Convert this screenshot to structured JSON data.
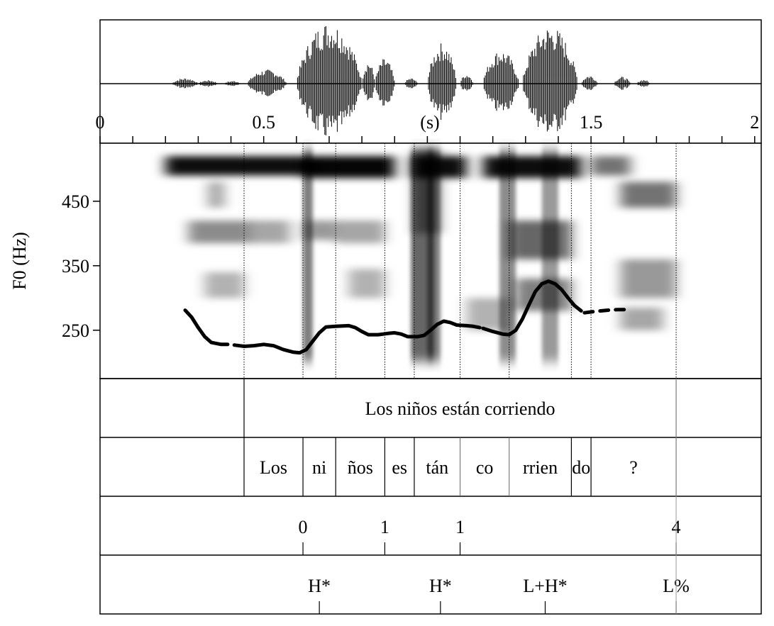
{
  "chart_data": {
    "type": "line",
    "time_axis": {
      "label": "(s)",
      "ticks": [
        {
          "value": 0,
          "label": "0"
        },
        {
          "value": 0.5,
          "label": "0.5"
        },
        {
          "value": 1.5,
          "label": "1.5"
        },
        {
          "value": 2,
          "label": "2"
        }
      ],
      "range": [
        0,
        2.02
      ]
    },
    "f0_axis": {
      "label": "F0 (Hz)",
      "ticks": [
        {
          "value": 250,
          "label": "250"
        },
        {
          "value": 350,
          "label": "350"
        },
        {
          "value": 450,
          "label": "450"
        }
      ],
      "range": [
        175,
        540
      ]
    },
    "f0_contour": {
      "segments": [
        {
          "style": "solid",
          "points": [
            [
              0.26,
              281
            ],
            [
              0.28,
              270
            ],
            [
              0.3,
              254
            ],
            [
              0.32,
              240
            ],
            [
              0.34,
              231
            ],
            [
              0.37,
              228
            ],
            [
              0.39,
              228
            ]
          ]
        },
        {
          "style": "solid",
          "points": [
            [
              0.41,
              227
            ],
            [
              0.44,
              225
            ],
            [
              0.47,
              226
            ],
            [
              0.5,
              228
            ],
            [
              0.53,
              226
            ],
            [
              0.56,
              220
            ],
            [
              0.59,
              216
            ],
            [
              0.61,
              215
            ],
            [
              0.63,
              220
            ],
            [
              0.65,
              233
            ],
            [
              0.67,
              246
            ],
            [
              0.69,
              255
            ],
            [
              0.72,
              256
            ],
            [
              0.76,
              257
            ],
            [
              0.78,
              254
            ],
            [
              0.8,
              248
            ],
            [
              0.82,
              243
            ],
            [
              0.85,
              243
            ],
            [
              0.88,
              245
            ],
            [
              0.9,
              246
            ],
            [
              0.92,
              244
            ],
            [
              0.94,
              240
            ],
            [
              0.97,
              240
            ],
            [
              0.99,
              242
            ],
            [
              1.01,
              250
            ],
            [
              1.03,
              259
            ],
            [
              1.05,
              264
            ],
            [
              1.07,
              262
            ],
            [
              1.09,
              258
            ],
            [
              1.12,
              257
            ],
            [
              1.14,
              256
            ],
            [
              1.16,
              254
            ]
          ]
        },
        {
          "style": "solid",
          "points": [
            [
              1.17,
              253
            ],
            [
              1.2,
              248
            ],
            [
              1.23,
              244
            ],
            [
              1.25,
              243
            ],
            [
              1.27,
              250
            ],
            [
              1.29,
              267
            ],
            [
              1.31,
              289
            ],
            [
              1.33,
              310
            ],
            [
              1.35,
              322
            ],
            [
              1.37,
              326
            ],
            [
              1.39,
              322
            ],
            [
              1.41,
              313
            ],
            [
              1.43,
              300
            ],
            [
              1.45,
              288
            ],
            [
              1.47,
              280
            ]
          ]
        },
        {
          "style": "dashed",
          "points": [
            [
              1.48,
              277
            ],
            [
              1.51,
              279
            ],
            [
              1.55,
              281
            ],
            [
              1.58,
              282
            ],
            [
              1.61,
              282
            ]
          ]
        }
      ]
    },
    "tiers": [
      {
        "name": "",
        "type": "interval",
        "boundaries": [
          0.44,
          1.76
        ],
        "labels": [
          {
            "text": "Los niños están corriendo",
            "start": 0.44,
            "end": 1.76
          }
        ]
      },
      {
        "name": "",
        "type": "interval",
        "boundaries": [
          0.44,
          0.62,
          0.72,
          0.87,
          0.96,
          1.1,
          1.25,
          1.44,
          1.5,
          1.76
        ],
        "labels": [
          {
            "text": "Los",
            "start": 0.44,
            "end": 0.62
          },
          {
            "text": "ni",
            "start": 0.62,
            "end": 0.72
          },
          {
            "text": "ños",
            "start": 0.72,
            "end": 0.87
          },
          {
            "text": "es",
            "start": 0.87,
            "end": 0.96
          },
          {
            "text": "tán",
            "start": 0.96,
            "end": 1.1
          },
          {
            "text": "co",
            "start": 1.1,
            "end": 1.25
          },
          {
            "text": "rrien",
            "start": 1.25,
            "end": 1.44
          },
          {
            "text": "do",
            "start": 1.44,
            "end": 1.5
          },
          {
            "text": "?",
            "start": 1.5,
            "end": 1.76
          }
        ]
      },
      {
        "name": "",
        "type": "point",
        "points": [
          {
            "time": 0.62,
            "label": "0"
          },
          {
            "time": 0.87,
            "label": "1"
          },
          {
            "time": 1.1,
            "label": "1"
          },
          {
            "time": 1.76,
            "label": "4"
          }
        ]
      },
      {
        "name": "",
        "type": "point",
        "points": [
          {
            "time": 0.67,
            "label": "H*"
          },
          {
            "time": 1.04,
            "label": "H*"
          },
          {
            "time": 1.36,
            "label": "L+H*"
          },
          {
            "time": 1.76,
            "label": "L%"
          }
        ]
      }
    ]
  }
}
